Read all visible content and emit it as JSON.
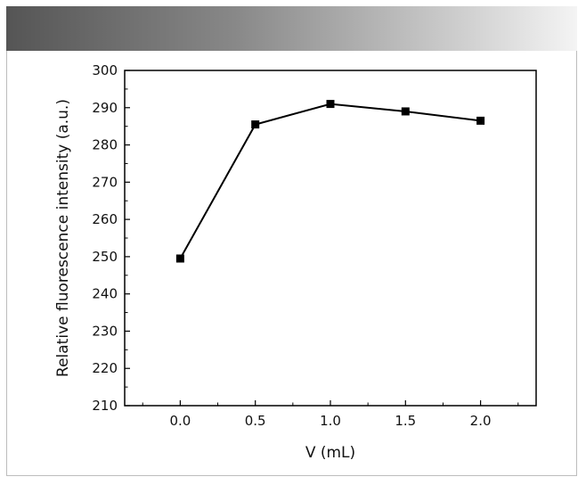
{
  "chart_data": {
    "type": "line",
    "title": "",
    "xlabel": "V (mL)",
    "ylabel": "Relative fluorescence intensity (a.u.)",
    "x": [
      0.0,
      0.5,
      1.0,
      1.5,
      2.0
    ],
    "series": [
      {
        "values": [
          249.5,
          285.5,
          291.0,
          289.0,
          286.5
        ]
      }
    ],
    "xlim": [
      -0.37,
      2.37
    ],
    "ylim": [
      210,
      300
    ],
    "xticks": [
      0.0,
      0.5,
      1.0,
      1.5,
      2.0
    ],
    "xtick_labels": [
      "0.0",
      "0.5",
      "1.0",
      "1.5",
      "2.0"
    ],
    "yticks": [
      210,
      220,
      230,
      240,
      250,
      260,
      270,
      280,
      290,
      300
    ],
    "ytick_labels": [
      "210",
      "220",
      "230",
      "240",
      "250",
      "260",
      "270",
      "280",
      "290",
      "300"
    ],
    "grid": false,
    "legend": "none",
    "marker": "square",
    "line_color": "#000000"
  }
}
